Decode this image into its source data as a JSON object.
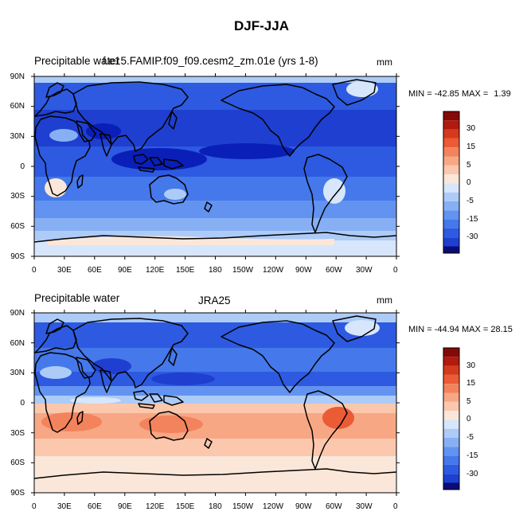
{
  "figure": {
    "title": "DJF-JJA"
  },
  "palette": [
    "#0b0b78",
    "#0a1fb8",
    "#1e3fd0",
    "#2d5ae0",
    "#4578ea",
    "#6393f0",
    "#87b0f4",
    "#adcbf7",
    "#d7e6fa",
    "#fbe7da",
    "#fbc8ad",
    "#f8a785",
    "#f3835d",
    "#ea5b36",
    "#d43a1d",
    "#b11a0f",
    "#840a08"
  ],
  "panels": [
    {
      "left_label": "Precipitable water",
      "center_label": "f.e15.FAMIP.f09_f09.cesm2_zm.01e (yrs 1-8)",
      "units": "mm",
      "min_label": "MIN =",
      "min": "-42.85",
      "max_label": "MAX =",
      "max": "1.39",
      "lat_ticks": [
        "90N",
        "60N",
        "30N",
        "0",
        "30S",
        "60S",
        "90S"
      ],
      "lon_ticks": [
        "0",
        "30E",
        "60E",
        "90E",
        "120E",
        "150E",
        "180",
        "150W",
        "120W",
        "90W",
        "60W",
        "30W",
        "0"
      ],
      "cb_labels": [
        "30",
        "15",
        "5",
        "0",
        "-5",
        "-15",
        "-30"
      ]
    },
    {
      "left_label": "Precipitable water",
      "center_label": "JRA25",
      "units": "mm",
      "min_label": "MIN =",
      "min": "-44.94",
      "max_label": "MAX =",
      "max": "28.15",
      "lat_ticks": [
        "90N",
        "60N",
        "30N",
        "0",
        "30S",
        "60S",
        "90S"
      ],
      "lon_ticks": [
        "0",
        "30E",
        "60E",
        "90E",
        "120E",
        "150E",
        "180",
        "150W",
        "120W",
        "90W",
        "60W",
        "30W",
        "0"
      ],
      "cb_labels": [
        "30",
        "15",
        "5",
        "0",
        "-5",
        "-15",
        "-30"
      ]
    }
  ]
}
